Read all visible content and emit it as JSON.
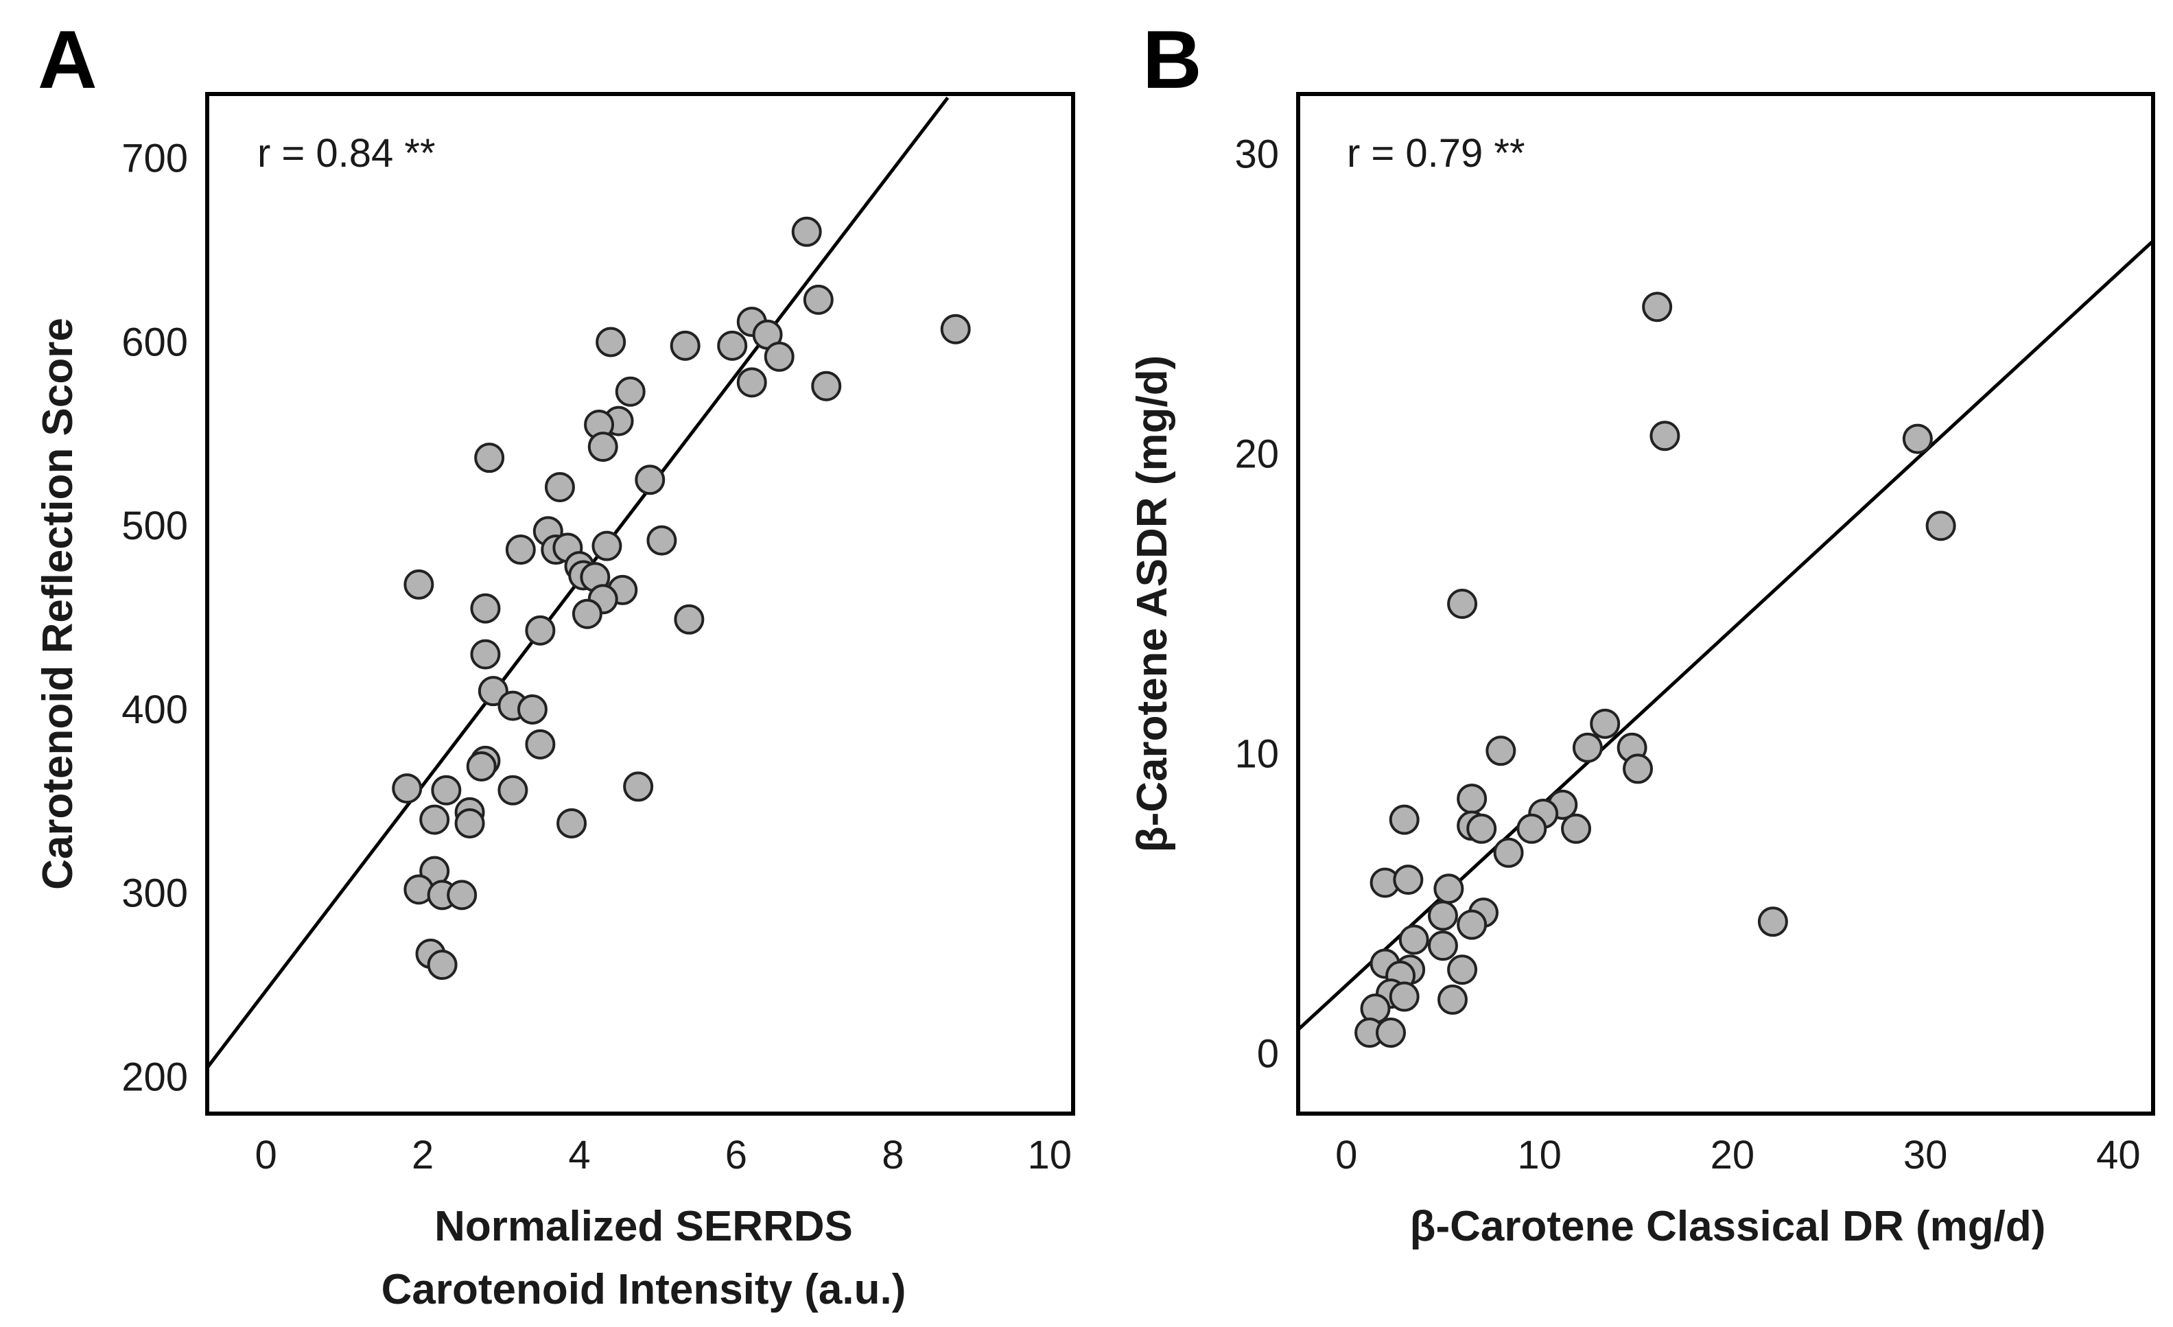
{
  "chart_data": [
    {
      "type": "scatter",
      "panel_label": "A",
      "annotation": "r = 0.84 **",
      "xlabel_line1": "Normalized SERRDS",
      "xlabel_line2": "Carotenoid Intensity (a.u.)",
      "ylabel": "Carotenoid Reflection Score",
      "xlim": [
        -0.75,
        10.3
      ],
      "ylim": [
        180,
        735
      ],
      "xticks": [
        "0",
        "2",
        "4",
        "6",
        "8",
        "10"
      ],
      "yticks": [
        "200",
        "300",
        "400",
        "500",
        "600",
        "700"
      ],
      "regression": {
        "x0": -0.75,
        "y0": 205,
        "x1": 8.7,
        "y1": 733
      },
      "points": [
        [
          6.9,
          660
        ],
        [
          7.05,
          623
        ],
        [
          7.15,
          576
        ],
        [
          8.8,
          607
        ],
        [
          6.2,
          611
        ],
        [
          6.4,
          604
        ],
        [
          6.55,
          592
        ],
        [
          6.2,
          578
        ],
        [
          5.95,
          598
        ],
        [
          5.35,
          598
        ],
        [
          4.4,
          600
        ],
        [
          4.65,
          573
        ],
        [
          4.5,
          557
        ],
        [
          4.25,
          555
        ],
        [
          4.3,
          543
        ],
        [
          2.85,
          537
        ],
        [
          3.75,
          521
        ],
        [
          4.9,
          525
        ],
        [
          5.05,
          492
        ],
        [
          3.6,
          497
        ],
        [
          3.25,
          487
        ],
        [
          3.7,
          487
        ],
        [
          3.85,
          488
        ],
        [
          4.35,
          489
        ],
        [
          4.0,
          478
        ],
        [
          4.05,
          473
        ],
        [
          4.2,
          472
        ],
        [
          1.95,
          468
        ],
        [
          4.55,
          465
        ],
        [
          4.3,
          460
        ],
        [
          4.1,
          452
        ],
        [
          5.4,
          449
        ],
        [
          3.5,
          443
        ],
        [
          2.8,
          455
        ],
        [
          2.8,
          430
        ],
        [
          2.9,
          410
        ],
        [
          3.15,
          402
        ],
        [
          3.4,
          400
        ],
        [
          3.5,
          381
        ],
        [
          2.8,
          372
        ],
        [
          2.75,
          369
        ],
        [
          1.8,
          357
        ],
        [
          2.3,
          356
        ],
        [
          3.15,
          356
        ],
        [
          4.75,
          358
        ],
        [
          2.6,
          344
        ],
        [
          2.15,
          340
        ],
        [
          2.6,
          338
        ],
        [
          3.9,
          338
        ],
        [
          2.15,
          312
        ],
        [
          1.95,
          302
        ],
        [
          2.25,
          299
        ],
        [
          2.5,
          299
        ],
        [
          2.1,
          267
        ],
        [
          2.25,
          261
        ]
      ]
    },
    {
      "type": "scatter",
      "panel_label": "B",
      "annotation": "r = 0.79 **",
      "xlabel": "β-Carotene Classical DR (mg/d)",
      "ylabel": "β-Carotene ASDR (mg/d)",
      "xlim": [
        -2.5,
        41.8
      ],
      "ylim": [
        -2,
        32
      ],
      "xticks": [
        "0",
        "10",
        "20",
        "30",
        "40"
      ],
      "yticks": [
        "0",
        "10",
        "20",
        "30"
      ],
      "regression": {
        "x0": -2.5,
        "y0": 0.8,
        "x1": 41.8,
        "y1": 27.1
      },
      "points": [
        [
          16.1,
          24.9
        ],
        [
          16.5,
          20.6
        ],
        [
          29.6,
          20.5
        ],
        [
          30.8,
          17.6
        ],
        [
          6.0,
          15.0
        ],
        [
          13.4,
          11.0
        ],
        [
          14.8,
          10.2
        ],
        [
          12.5,
          10.2
        ],
        [
          8.0,
          10.1
        ],
        [
          15.1,
          9.5
        ],
        [
          6.5,
          8.5
        ],
        [
          11.2,
          8.3
        ],
        [
          10.2,
          8.0
        ],
        [
          3.0,
          7.8
        ],
        [
          6.5,
          7.6
        ],
        [
          7.0,
          7.5
        ],
        [
          9.6,
          7.5
        ],
        [
          11.9,
          7.5
        ],
        [
          8.4,
          6.7
        ],
        [
          2.0,
          5.7
        ],
        [
          3.2,
          5.8
        ],
        [
          5.3,
          5.5
        ],
        [
          7.1,
          4.7
        ],
        [
          5.0,
          4.6
        ],
        [
          6.5,
          4.3
        ],
        [
          22.1,
          4.4
        ],
        [
          3.5,
          3.8
        ],
        [
          5.0,
          3.6
        ],
        [
          2.0,
          3.0
        ],
        [
          6.0,
          2.8
        ],
        [
          3.3,
          2.8
        ],
        [
          2.8,
          2.6
        ],
        [
          2.3,
          2.0
        ],
        [
          3.0,
          1.9
        ],
        [
          5.5,
          1.8
        ],
        [
          1.5,
          1.5
        ],
        [
          1.2,
          0.7
        ],
        [
          2.3,
          0.7
        ]
      ]
    }
  ]
}
